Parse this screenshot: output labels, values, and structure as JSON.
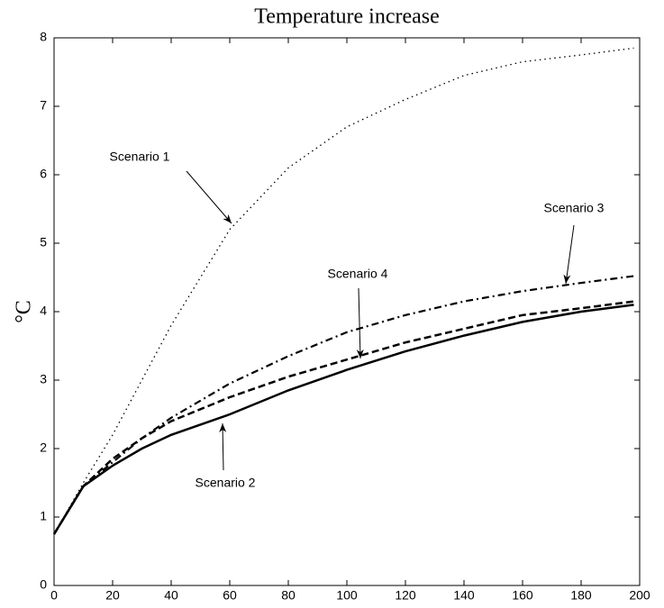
{
  "chart_data": {
    "type": "line",
    "title": "Temperature increase",
    "y_label": "°C",
    "x": [
      0,
      10,
      20,
      30,
      40,
      60,
      80,
      100,
      120,
      140,
      160,
      180,
      198
    ],
    "series": [
      {
        "name": "Scenario 1",
        "color": "#000000",
        "line_style": "dotted",
        "values": [
          0.75,
          1.5,
          2.2,
          3.0,
          3.8,
          5.2,
          6.1,
          6.7,
          7.1,
          7.45,
          7.65,
          7.75,
          7.85
        ]
      },
      {
        "name": "Scenario 2",
        "color": "#000000",
        "line_style": "solid",
        "values": [
          0.75,
          1.45,
          1.75,
          2.0,
          2.2,
          2.5,
          2.85,
          3.15,
          3.42,
          3.65,
          3.85,
          4.0,
          4.1
        ]
      },
      {
        "name": "Scenario 3",
        "color": "#000000",
        "line_style": "dashdot",
        "values": [
          0.75,
          1.45,
          1.8,
          2.15,
          2.45,
          2.95,
          3.35,
          3.7,
          3.95,
          4.15,
          4.3,
          4.42,
          4.52
        ]
      },
      {
        "name": "Scenario 4",
        "color": "#000000",
        "line_style": "dashed",
        "values": [
          0.75,
          1.45,
          1.85,
          2.15,
          2.4,
          2.75,
          3.05,
          3.3,
          3.55,
          3.75,
          3.95,
          4.05,
          4.15
        ]
      }
    ],
    "annotations": [
      {
        "text": "Scenario 1"
      },
      {
        "text": "Scenario 2"
      },
      {
        "text": "Scenario 3"
      },
      {
        "text": "Scenario 4"
      }
    ],
    "xlim": [
      0,
      200
    ],
    "xticks": [
      0,
      20,
      40,
      60,
      80,
      100,
      120,
      140,
      160,
      180,
      200
    ],
    "ylim": [
      0,
      8
    ],
    "yticks": [
      0,
      1,
      2,
      3,
      4,
      5,
      6,
      7,
      8
    ],
    "grid": false
  }
}
